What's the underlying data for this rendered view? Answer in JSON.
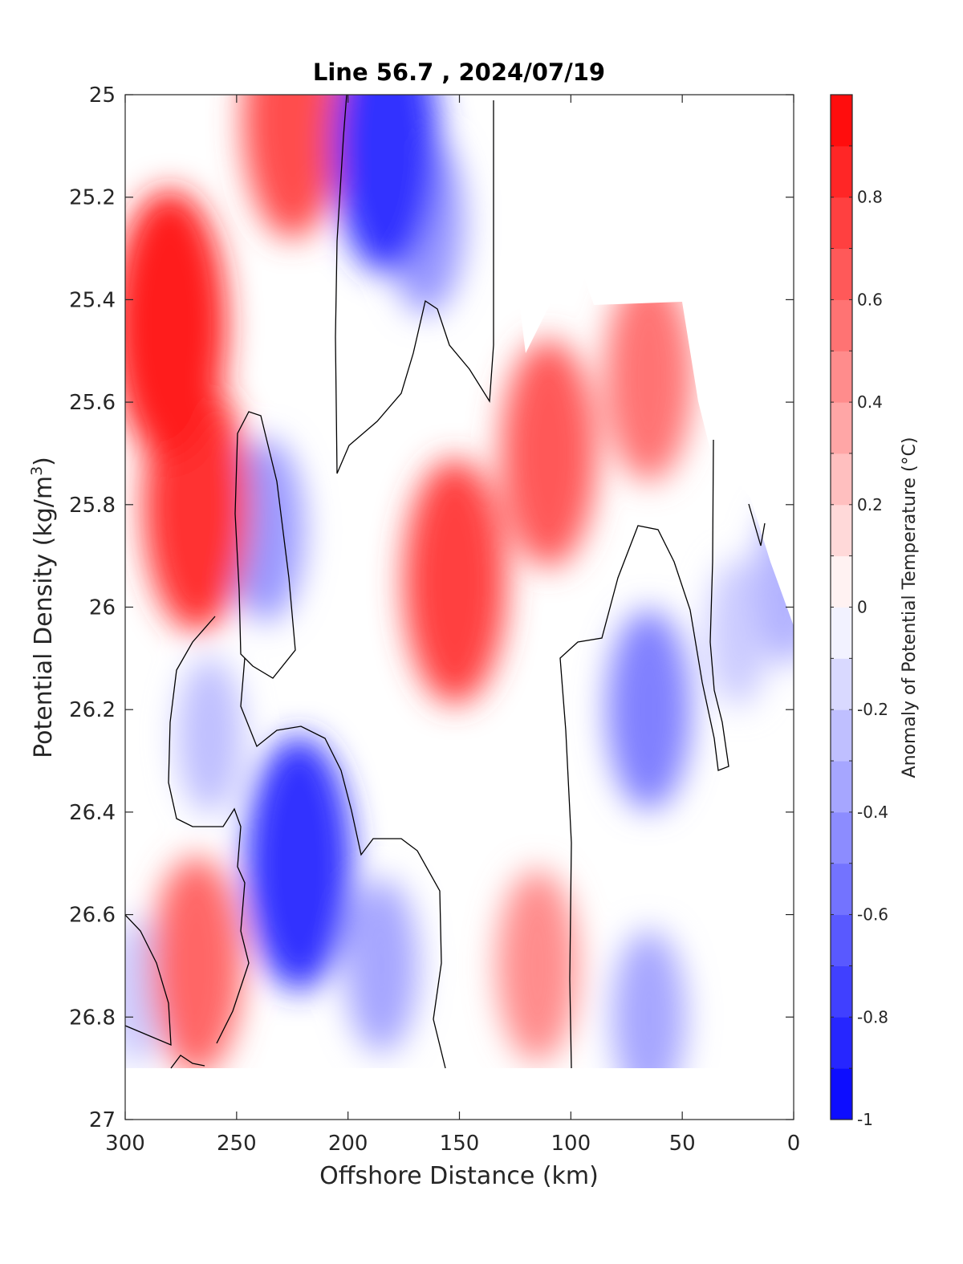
{
  "chart_data": {
    "type": "heatmap",
    "title": "Line 56.7 , 2024/07/19",
    "xlabel": "Offshore Distance (km)",
    "ylabel_main": "Potential Density (kg/m",
    "ylabel_sup": "3",
    "ylabel_close": ")",
    "colorbar_label": "Anomaly of Potential Temperature (°C)",
    "xlim": [
      300,
      0
    ],
    "ylim": [
      25,
      27
    ],
    "x_reversed": true,
    "y_reversed": true,
    "x_ticks": [
      300,
      250,
      200,
      150,
      100,
      50,
      0
    ],
    "x_tick_labels": [
      "300",
      "250",
      "200",
      "150",
      "100",
      "50",
      "0"
    ],
    "y_ticks": [
      25,
      25.2,
      25.4,
      25.6,
      25.8,
      26,
      26.2,
      26.4,
      26.6,
      26.8,
      27
    ],
    "y_tick_labels": [
      "25",
      "25.2",
      "25.4",
      "25.6",
      "25.8",
      "26",
      "26.2",
      "26.4",
      "26.6",
      "26.8",
      "27"
    ],
    "colorbar_range": [
      -1,
      1
    ],
    "colorbar_levels": [
      -1,
      -0.9,
      -0.8,
      -0.7,
      -0.6,
      -0.5,
      -0.4,
      -0.3,
      -0.2,
      -0.1,
      0,
      0.1,
      0.2,
      0.3,
      0.4,
      0.5,
      0.6,
      0.7,
      0.8,
      0.9,
      1
    ],
    "colorbar_ticks": [
      0.8,
      0.6,
      0.4,
      0.2,
      0,
      -0.2,
      -0.4,
      -0.6,
      -0.8,
      -1
    ],
    "colorbar_tick_labels": [
      "0.8",
      "0.6",
      "0.4",
      "0.2",
      "0",
      "-0.2",
      "-0.4",
      "-0.6",
      "-0.8",
      "-1"
    ],
    "colormap": {
      "negative": "#0000ff",
      "zero": "#ffffff",
      "positive": "#ff0000"
    },
    "zero_contour_color": "#000000",
    "grid": false,
    "features": [
      {
        "name": "warm core offshore",
        "x": 280,
        "y": 25.45,
        "anomaly": 0.9
      },
      {
        "name": "warm patch",
        "x": 268,
        "y": 25.8,
        "anomaly": 0.8
      },
      {
        "name": "warm surface",
        "x": 225,
        "y": 25.05,
        "anomaly": 0.7
      },
      {
        "name": "cold surface core",
        "x": 183,
        "y": 25.1,
        "anomaly": -0.8
      },
      {
        "name": "cold tongue",
        "x": 165,
        "y": 25.25,
        "anomaly": -0.4
      },
      {
        "name": "cold lens",
        "x": 237,
        "y": 25.85,
        "anomaly": -0.4
      },
      {
        "name": "cold patch",
        "x": 262,
        "y": 26.25,
        "anomaly": -0.25
      },
      {
        "name": "cold deep core",
        "x": 222,
        "y": 26.5,
        "anomaly": -0.8
      },
      {
        "name": "cold deep",
        "x": 185,
        "y": 26.7,
        "anomaly": -0.35
      },
      {
        "name": "warm mid core",
        "x": 152,
        "y": 25.95,
        "anomaly": 0.75
      },
      {
        "name": "warm nearshore",
        "x": 110,
        "y": 25.7,
        "anomaly": 0.65
      },
      {
        "name": "warm nearshore 2",
        "x": 65,
        "y": 25.55,
        "anomaly": 0.55
      },
      {
        "name": "warm deep",
        "x": 115,
        "y": 26.7,
        "anomaly": 0.45
      },
      {
        "name": "warm deep offshore",
        "x": 268,
        "y": 26.7,
        "anomaly": 0.6
      },
      {
        "name": "cold nearshore core",
        "x": 65,
        "y": 26.2,
        "anomaly": -0.5
      },
      {
        "name": "cold nearshore deep",
        "x": 65,
        "y": 26.8,
        "anomaly": -0.35
      },
      {
        "name": "cold coastal",
        "x": 25,
        "y": 26.05,
        "anomaly": -0.2
      },
      {
        "name": "cold coast",
        "x": 2,
        "y": 25.95,
        "anomaly": -0.3
      },
      {
        "name": "cold corner",
        "x": 295,
        "y": 26.75,
        "anomaly": -0.2
      }
    ]
  }
}
